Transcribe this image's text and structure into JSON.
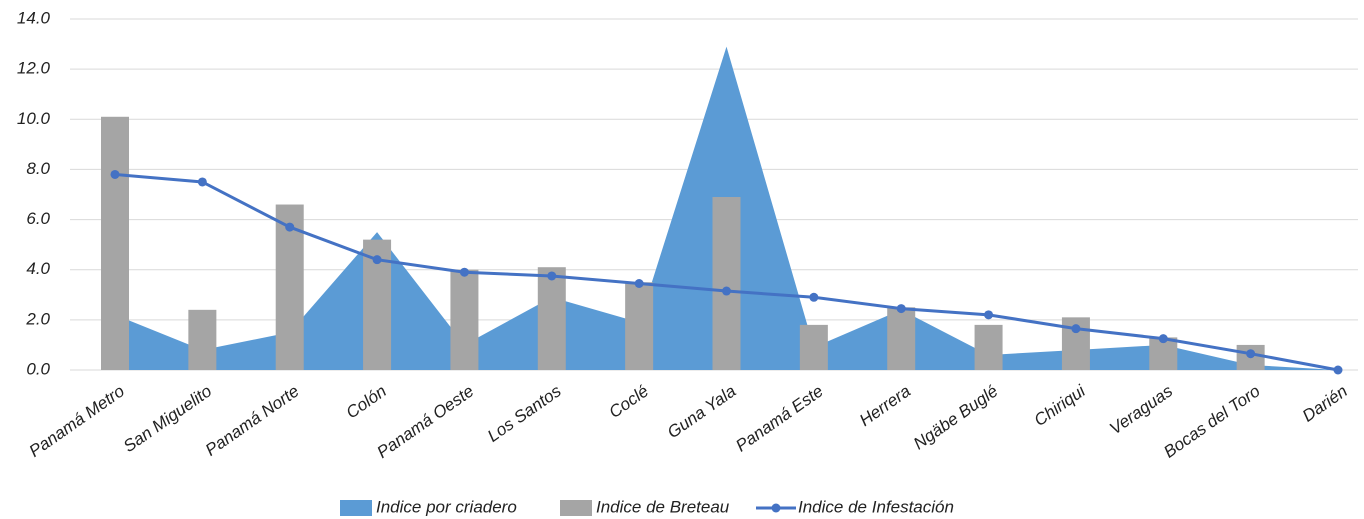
{
  "chart_data": {
    "type": "combo",
    "categories": [
      "Panamá Metro",
      "San Miguelito",
      "Panamá Norte",
      "Colón",
      "Panamá Oeste",
      "Los Santos",
      "Coclé",
      "Guna Yala",
      "Panamá Este",
      "Herrera",
      "Ngäbe Buglé",
      "Chiriqui",
      "Veraguas",
      "Bocas del Toro",
      "Darién"
    ],
    "series": [
      {
        "name": "Indice por criadero",
        "type": "area",
        "color": "#5b9bd5",
        "values": [
          2.2,
          0.8,
          1.5,
          5.5,
          1.0,
          2.9,
          1.9,
          12.9,
          0.9,
          2.4,
          0.6,
          0.8,
          1.0,
          0.2,
          0.0
        ]
      },
      {
        "name": "Indice de Breteau",
        "type": "bar",
        "color": "#a5a5a5",
        "values": [
          10.1,
          2.4,
          6.6,
          5.2,
          4.0,
          4.1,
          3.5,
          6.9,
          1.8,
          2.5,
          1.8,
          2.1,
          1.3,
          1.0,
          0.0
        ]
      },
      {
        "name": "Indice de Infestación",
        "type": "line",
        "color": "#4472c4",
        "values": [
          7.8,
          7.5,
          5.7,
          4.4,
          3.9,
          3.75,
          3.45,
          3.15,
          2.9,
          2.45,
          2.2,
          1.65,
          1.25,
          0.65,
          0.0
        ]
      }
    ],
    "ylim": [
      0,
      14
    ],
    "yticks": [
      {
        "value": 0,
        "label": "0.0"
      },
      {
        "value": 2,
        "label": "2.0"
      },
      {
        "value": 4,
        "label": "4.0"
      },
      {
        "value": 6,
        "label": "6.0"
      },
      {
        "value": 8,
        "label": "8.0"
      },
      {
        "value": 10,
        "label": "10.0"
      },
      {
        "value": 12,
        "label": "12.0"
      },
      {
        "value": 14,
        "label": "14.0"
      }
    ],
    "grid": true,
    "legend": "bottom"
  }
}
